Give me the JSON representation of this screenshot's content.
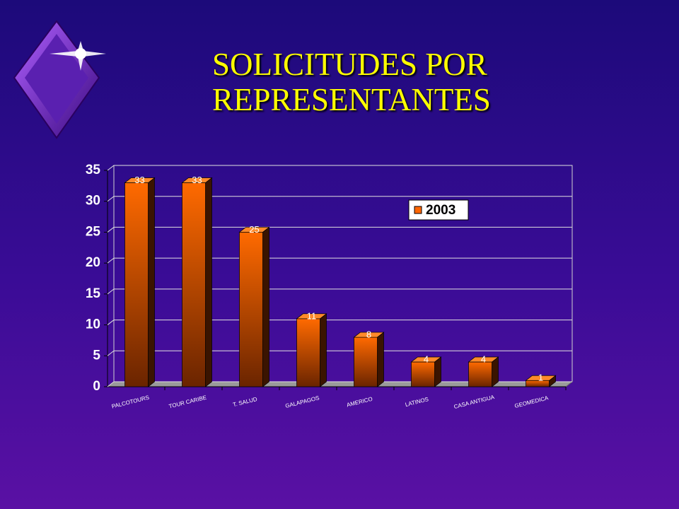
{
  "chart_data": {
    "type": "bar",
    "title": "SOLICITUDES POR REPRESENTANTES",
    "categories": [
      "PALCOTOURS",
      "TOUR CARIBE",
      "T. SALUD",
      "GALAPAGOS",
      "AMERICO",
      "LATINOS",
      "CASA ANTIGUA",
      "GEOMEDICA"
    ],
    "series": [
      {
        "name": "2003",
        "color": "#ff6600",
        "values": [
          33,
          33,
          25,
          11,
          8,
          4,
          4,
          1
        ]
      }
    ],
    "ylim": [
      0,
      35
    ],
    "yticks": [
      0,
      5,
      10,
      15,
      20,
      25,
      30,
      35
    ],
    "grid": true,
    "legend": "top-right"
  }
}
